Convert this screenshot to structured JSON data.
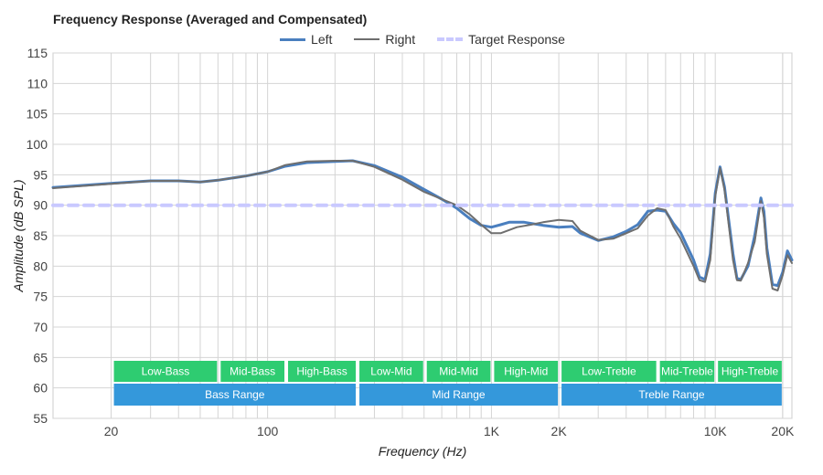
{
  "chart_data": {
    "type": "line",
    "title": "Frequency Response (Averaged and Compensated)",
    "xlabel": "Frequency (Hz)",
    "ylabel": "Amplitude (dB SPL)",
    "xscale": "log",
    "xlim": [
      11,
      22000
    ],
    "ylim": [
      55,
      115
    ],
    "grid": true,
    "legend_position": "top-center",
    "x_ticks": [
      {
        "value": 20,
        "label": "20"
      },
      {
        "value": 100,
        "label": "100"
      },
      {
        "value": 1000,
        "label": "1K"
      },
      {
        "value": 2000,
        "label": "2K"
      },
      {
        "value": 10000,
        "label": "10K"
      },
      {
        "value": 20000,
        "label": "20K"
      }
    ],
    "y_ticks": [
      115,
      110,
      105,
      100,
      95,
      90,
      85,
      80,
      75,
      70,
      65,
      60,
      55
    ],
    "series": [
      {
        "name": "Left",
        "color": "#4a7fbf",
        "points": [
          [
            11,
            92.9
          ],
          [
            20,
            93.6
          ],
          [
            30,
            94.0
          ],
          [
            40,
            94.0
          ],
          [
            50,
            93.8
          ],
          [
            60,
            94.1
          ],
          [
            80,
            94.8
          ],
          [
            100,
            95.5
          ],
          [
            120,
            96.4
          ],
          [
            150,
            97.0
          ],
          [
            200,
            97.2
          ],
          [
            240,
            97.3
          ],
          [
            300,
            96.5
          ],
          [
            400,
            94.6
          ],
          [
            500,
            92.6
          ],
          [
            600,
            91.0
          ],
          [
            700,
            89.5
          ],
          [
            800,
            87.8
          ],
          [
            900,
            86.7
          ],
          [
            1000,
            86.4
          ],
          [
            1100,
            86.8
          ],
          [
            1200,
            87.2
          ],
          [
            1400,
            87.2
          ],
          [
            1700,
            86.7
          ],
          [
            2000,
            86.4
          ],
          [
            2300,
            86.5
          ],
          [
            2500,
            85.4
          ],
          [
            3000,
            84.2
          ],
          [
            3500,
            84.8
          ],
          [
            4000,
            85.7
          ],
          [
            4500,
            86.8
          ],
          [
            5000,
            89.0
          ],
          [
            5500,
            89.2
          ],
          [
            6000,
            89.0
          ],
          [
            6500,
            87.0
          ],
          [
            7000,
            85.5
          ],
          [
            8000,
            81.0
          ],
          [
            8500,
            78.2
          ],
          [
            9000,
            77.8
          ],
          [
            9500,
            82.0
          ],
          [
            10000,
            92.0
          ],
          [
            10500,
            96.3
          ],
          [
            11000,
            93.0
          ],
          [
            12000,
            82.0
          ],
          [
            12500,
            78.0
          ],
          [
            13000,
            77.8
          ],
          [
            14000,
            80.0
          ],
          [
            15000,
            85.0
          ],
          [
            16000,
            91.2
          ],
          [
            16500,
            89.0
          ],
          [
            17000,
            83.0
          ],
          [
            18000,
            77.0
          ],
          [
            19000,
            76.8
          ],
          [
            20000,
            79.0
          ],
          [
            21000,
            82.5
          ],
          [
            22000,
            81.0
          ]
        ]
      },
      {
        "name": "Right",
        "color": "#6e6e6e",
        "points": [
          [
            11,
            92.8
          ],
          [
            20,
            93.5
          ],
          [
            30,
            94.0
          ],
          [
            40,
            94.0
          ],
          [
            50,
            93.8
          ],
          [
            60,
            94.1
          ],
          [
            80,
            94.8
          ],
          [
            100,
            95.5
          ],
          [
            120,
            96.6
          ],
          [
            150,
            97.2
          ],
          [
            200,
            97.3
          ],
          [
            240,
            97.3
          ],
          [
            300,
            96.3
          ],
          [
            400,
            94.2
          ],
          [
            500,
            92.2
          ],
          [
            600,
            91.0
          ],
          [
            700,
            90.0
          ],
          [
            800,
            88.5
          ],
          [
            900,
            86.8
          ],
          [
            1000,
            85.4
          ],
          [
            1100,
            85.4
          ],
          [
            1300,
            86.4
          ],
          [
            1500,
            86.8
          ],
          [
            1700,
            87.2
          ],
          [
            2000,
            87.6
          ],
          [
            2300,
            87.4
          ],
          [
            2500,
            85.8
          ],
          [
            3000,
            84.3
          ],
          [
            3500,
            84.5
          ],
          [
            4000,
            85.4
          ],
          [
            4500,
            86.2
          ],
          [
            5000,
            88.3
          ],
          [
            5500,
            89.5
          ],
          [
            6000,
            89.2
          ],
          [
            6500,
            86.5
          ],
          [
            7000,
            84.5
          ],
          [
            8000,
            80.0
          ],
          [
            8500,
            77.7
          ],
          [
            9000,
            77.4
          ],
          [
            9500,
            81.0
          ],
          [
            10000,
            91.5
          ],
          [
            10500,
            96.1
          ],
          [
            11000,
            92.5
          ],
          [
            12000,
            81.0
          ],
          [
            12500,
            77.7
          ],
          [
            13000,
            77.6
          ],
          [
            14000,
            80.5
          ],
          [
            15000,
            84.0
          ],
          [
            16000,
            90.7
          ],
          [
            16500,
            88.0
          ],
          [
            17000,
            82.0
          ],
          [
            18000,
            76.3
          ],
          [
            19000,
            76.0
          ],
          [
            20000,
            78.5
          ],
          [
            21000,
            81.8
          ],
          [
            22000,
            80.5
          ]
        ]
      },
      {
        "name": "Target Response",
        "color": "#c9c9ff",
        "dashed": true,
        "points": [
          [
            11,
            90
          ],
          [
            22000,
            90
          ]
        ]
      }
    ],
    "bands": [
      {
        "label": "Low-Bass",
        "from": 20,
        "to": 60,
        "row": 1
      },
      {
        "label": "Mid-Bass",
        "from": 60,
        "to": 120,
        "row": 1
      },
      {
        "label": "High-Bass",
        "from": 120,
        "to": 250,
        "row": 1
      },
      {
        "label": "Low-Mid",
        "from": 250,
        "to": 500,
        "row": 1
      },
      {
        "label": "Mid-Mid",
        "from": 500,
        "to": 1000,
        "row": 1
      },
      {
        "label": "High-Mid",
        "from": 1000,
        "to": 2000,
        "row": 1
      },
      {
        "label": "Low-Treble",
        "from": 2000,
        "to": 5500,
        "row": 1
      },
      {
        "label": "Mid-Treble",
        "from": 5500,
        "to": 10000,
        "row": 1
      },
      {
        "label": "High-Treble",
        "from": 10000,
        "to": 20000,
        "row": 1
      },
      {
        "label": "Bass Range",
        "from": 20,
        "to": 250,
        "row": 2
      },
      {
        "label": "Mid Range",
        "from": 250,
        "to": 2000,
        "row": 2
      },
      {
        "label": "Treble Range",
        "from": 2000,
        "to": 20000,
        "row": 2
      }
    ],
    "band_colors": {
      "row1": "#2ecc71",
      "row2": "#3498db"
    }
  }
}
